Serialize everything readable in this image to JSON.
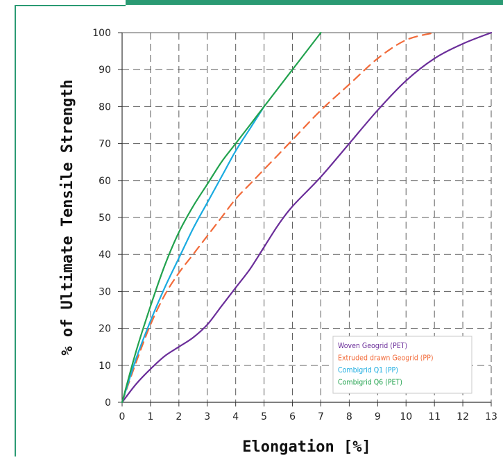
{
  "colors": {
    "frame": "#2a9a73",
    "grid": "#5a5a5a",
    "axis": "#333333"
  },
  "chart_data": {
    "type": "line",
    "title": "",
    "xlabel": "Elongation [%]",
    "ylabel": "% of Ultimate Tensile Strength",
    "xlim": [
      0,
      13
    ],
    "ylim": [
      0,
      100
    ],
    "x_ticks": [
      "0",
      "1",
      "2",
      "3",
      "4",
      "5",
      "6",
      "7",
      "8",
      "9",
      "10",
      "11",
      "12",
      "13"
    ],
    "y_ticks": [
      "0",
      "10",
      "20",
      "30",
      "40",
      "50",
      "60",
      "70",
      "80",
      "90",
      "100"
    ],
    "grid": true,
    "grid_style": "dashed",
    "legend_position": "bottom-right",
    "series": [
      {
        "name": "Woven Geogrid (PET)",
        "color": "#6b2e9a",
        "dash": "solid",
        "points": [
          [
            0,
            0
          ],
          [
            0.5,
            5
          ],
          [
            1,
            9
          ],
          [
            1.5,
            12.5
          ],
          [
            2,
            15
          ],
          [
            2.5,
            17.5
          ],
          [
            3,
            21
          ],
          [
            3.5,
            26
          ],
          [
            4,
            31
          ],
          [
            4.5,
            36
          ],
          [
            5,
            42
          ],
          [
            5.5,
            48
          ],
          [
            6,
            53
          ],
          [
            7,
            61
          ],
          [
            8,
            70
          ],
          [
            9,
            79
          ],
          [
            10,
            87
          ],
          [
            11,
            93
          ],
          [
            12,
            97
          ],
          [
            13,
            100
          ]
        ]
      },
      {
        "name": "Extruded drawn Geogrid (PP)",
        "color": "#f26b3a",
        "dash": "dashed",
        "points": [
          [
            0,
            0
          ],
          [
            0.5,
            11
          ],
          [
            1,
            21
          ],
          [
            1.5,
            29
          ],
          [
            2,
            35
          ],
          [
            2.5,
            40
          ],
          [
            3,
            45
          ],
          [
            3.5,
            50
          ],
          [
            4,
            55
          ],
          [
            4.5,
            59
          ],
          [
            5,
            63
          ],
          [
            5.5,
            67
          ],
          [
            6,
            71
          ],
          [
            7,
            79
          ],
          [
            8,
            86
          ],
          [
            9,
            93
          ],
          [
            10,
            98
          ],
          [
            11,
            100
          ]
        ]
      },
      {
        "name": "Combigrid Q1 (PP)",
        "color": "#1aabe0",
        "dash": "solid",
        "points": [
          [
            0,
            0
          ],
          [
            0.5,
            12
          ],
          [
            1,
            22
          ],
          [
            1.5,
            31
          ],
          [
            2,
            39
          ],
          [
            2.5,
            47
          ],
          [
            3,
            54
          ],
          [
            3.5,
            61
          ],
          [
            4,
            68
          ],
          [
            4.5,
            74
          ],
          [
            5,
            80
          ]
        ]
      },
      {
        "name": "Combigrid Q6 (PET)",
        "color": "#22a24e",
        "dash": "solid",
        "points": [
          [
            0,
            0
          ],
          [
            0.5,
            14
          ],
          [
            1,
            26
          ],
          [
            1.5,
            37
          ],
          [
            2,
            46
          ],
          [
            2.5,
            53
          ],
          [
            3,
            59
          ],
          [
            3.5,
            65
          ],
          [
            4,
            70
          ],
          [
            4.5,
            75
          ],
          [
            5,
            80
          ],
          [
            6,
            90
          ],
          [
            7,
            100
          ]
        ]
      }
    ]
  }
}
